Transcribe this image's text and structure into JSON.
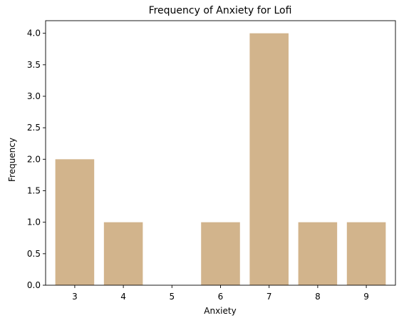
{
  "chart_data": {
    "type": "bar",
    "title": "Frequency of Anxiety for Lofi",
    "xlabel": "Anxiety",
    "ylabel": "Frequency",
    "x": [
      3,
      4,
      5,
      6,
      7,
      8,
      9
    ],
    "categories": [
      "3",
      "4",
      "5",
      "6",
      "7",
      "8",
      "9"
    ],
    "values": [
      2,
      1,
      0,
      1,
      4,
      1,
      1
    ],
    "ylim": [
      0,
      4.2
    ],
    "yticks": [
      0.0,
      0.5,
      1.0,
      1.5,
      2.0,
      2.5,
      3.0,
      3.5,
      4.0
    ],
    "ytick_labels": [
      "0.0",
      "0.5",
      "1.0",
      "1.5",
      "2.0",
      "2.5",
      "3.0",
      "3.5",
      "4.0"
    ],
    "bar_color": "#d2b48c",
    "grid": false,
    "legend": "none"
  }
}
